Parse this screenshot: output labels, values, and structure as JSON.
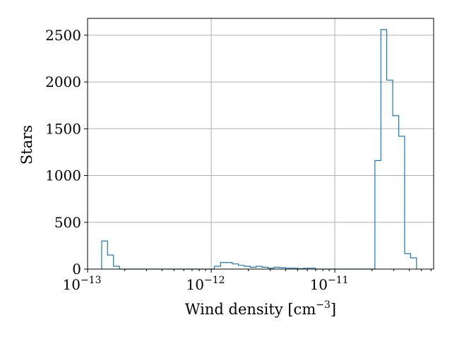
{
  "chart_data": {
    "type": "histogram",
    "title": "",
    "xlabel": "Wind density [cm",
    "xlabel_sup": "−3",
    "xlabel_end": "]",
    "ylabel": "Stars",
    "xscale": "log",
    "xlim": [
      1e-13,
      6.3e-11
    ],
    "ylim": [
      0,
      2680
    ],
    "grid": true,
    "color": "#1f77b4",
    "x_ticks": [
      {
        "value": 1e-13,
        "base": "10",
        "exp": "−13"
      },
      {
        "value": 1e-12,
        "base": "10",
        "exp": "−12"
      },
      {
        "value": 1e-11,
        "base": "10",
        "exp": "−11"
      }
    ],
    "y_ticks": [
      0,
      500,
      1000,
      1500,
      2000,
      2500
    ],
    "bins": {
      "edges": [
        1.3e-13,
        1.45e-13,
        1.62e-13,
        1.81e-13,
        2.02e-13,
        2.26e-13,
        2.52e-13,
        2.82e-13,
        3.15e-13,
        3.52e-13,
        3.93e-13,
        4.39e-13,
        4.9e-13,
        5.48e-13,
        6.12e-13,
        6.83e-13,
        7.63e-13,
        8.53e-13,
        9.52e-13,
        1.06e-12,
        1.19e-12,
        1.33e-12,
        1.48e-12,
        1.66e-12,
        1.85e-12,
        2.07e-12,
        2.31e-12,
        2.58e-12,
        2.88e-12,
        3.22e-12,
        3.59e-12,
        4.01e-12,
        4.48e-12,
        5.01e-12,
        5.59e-12,
        6.25e-12,
        6.98e-12,
        7.8e-12,
        8.71e-12,
        9.73e-12,
        1.087e-11,
        1.214e-11,
        1.356e-11,
        1.515e-11,
        1.692e-11,
        1.89e-11,
        2.11e-11,
        2.36e-11,
        2.63e-11,
        2.94e-11,
        3.29e-11,
        3.67e-11,
        4.1e-11,
        4.58e-11
      ],
      "counts": [
        300,
        150,
        30,
        0,
        0,
        0,
        0,
        0,
        0,
        0,
        0,
        0,
        0,
        0,
        0,
        0,
        0,
        0,
        0,
        30,
        70,
        70,
        55,
        40,
        30,
        20,
        30,
        20,
        10,
        20,
        15,
        10,
        10,
        5,
        10,
        10,
        0,
        0,
        0,
        0,
        0,
        0,
        0,
        0,
        0,
        0,
        1160,
        2560,
        2020,
        1640,
        1420,
        165,
        120
      ]
    }
  }
}
